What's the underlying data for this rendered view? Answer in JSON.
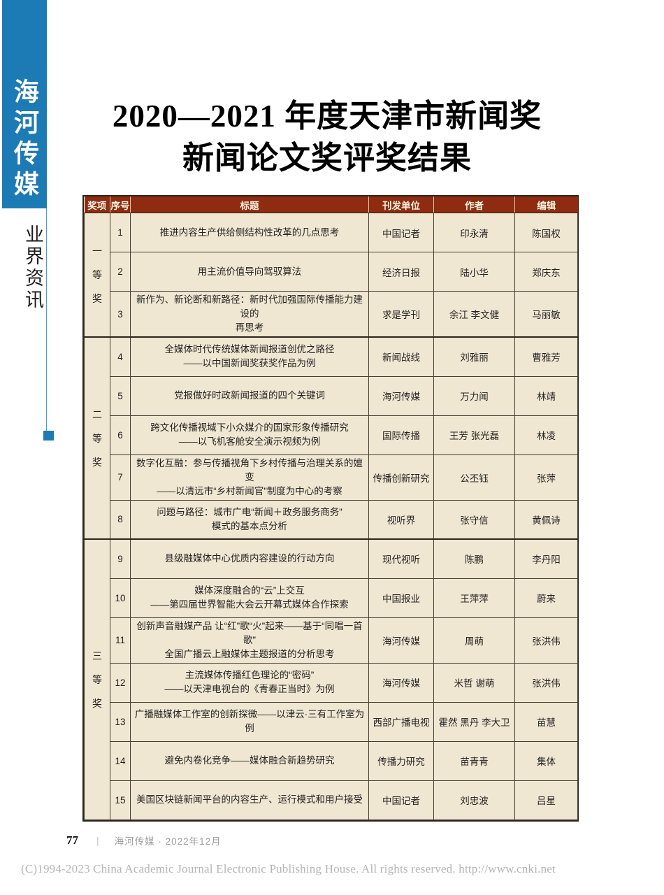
{
  "sidebar": {
    "brand": "海河传媒",
    "section": "业界资讯"
  },
  "title": {
    "line1": "2020—2021 年度天津市新闻奖",
    "line2": "新闻论文奖评奖结果"
  },
  "table": {
    "headers": [
      "奖项",
      "序号",
      "标题",
      "刊发单位",
      "作者",
      "编辑"
    ],
    "groups": [
      {
        "award": "一等奖",
        "rows": [
          {
            "no": "1",
            "title": "推进内容生产供给侧结构性改革的几点思考",
            "publisher": "中国记者",
            "author": "印永清",
            "editor": "陈国权"
          },
          {
            "no": "2",
            "title": "用主流价值导向驾驭算法",
            "publisher": "经济日报",
            "author": "陆小华",
            "editor": "郑庆东"
          },
          {
            "no": "3",
            "title": "新作为、新论断和新路径：新时代加强国际传播能力建设的\n再思考",
            "publisher": "求是学刊",
            "author": "余江 李文健",
            "editor": "马丽敏"
          }
        ]
      },
      {
        "award": "二等奖",
        "rows": [
          {
            "no": "4",
            "title": "全媒体时代传统媒体新闻报道创优之路径\n——以中国新闻奖获奖作品为例",
            "publisher": "新闻战线",
            "author": "刘雅丽",
            "editor": "曹雅芳"
          },
          {
            "no": "5",
            "title": "党报做好时政新闻报道的四个关键词",
            "publisher": "海河传媒",
            "author": "万力闻",
            "editor": "林靖"
          },
          {
            "no": "6",
            "title": "跨文化传播视域下小众媒介的国家形象传播研究\n——以飞机客舱安全演示视频为例",
            "publisher": "国际传播",
            "author": "王芳 张光磊",
            "editor": "林凌"
          },
          {
            "no": "7",
            "title": "数字化互融：参与传播视角下乡村传播与治理关系的嬗变\n——以清远市“乡村新闻官”制度为中心的考察",
            "publisher": "传播创新研究",
            "author": "公丕钰",
            "editor": "张萍"
          },
          {
            "no": "8",
            "title": "问题与路径：城市广电“新闻＋政务服务商务”\n模式的基本点分析",
            "publisher": "视听界",
            "author": "张守信",
            "editor": "黄佩诗"
          }
        ]
      },
      {
        "award": "三等奖",
        "rows": [
          {
            "no": "9",
            "title": "县级融媒体中心优质内容建设的行动方向",
            "publisher": "现代视听",
            "author": "陈鹏",
            "editor": "李丹阳"
          },
          {
            "no": "10",
            "title": "媒体深度融合的“云”上交互\n——第四届世界智能大会云开幕式媒体合作探索",
            "publisher": "中国报业",
            "author": "王萍萍",
            "editor": "蔚来"
          },
          {
            "no": "11",
            "title": "创新声音融媒产品 让“红”歌“火”起来——基于“同唱一首歌”\n全国广播云上融媒体主题报道的分析思考",
            "publisher": "海河传媒",
            "author": "周萌",
            "editor": "张洪伟"
          },
          {
            "no": "12",
            "title": "主流媒体传播红色理论的“密码”\n——以天津电视台的《青春正当时》为例",
            "publisher": "海河传媒",
            "author": "米哲 谢萌",
            "editor": "张洪伟"
          },
          {
            "no": "13",
            "title": "广播融媒体工作室的创新探微——以津云·三有工作室为例",
            "publisher": "西部广播电视",
            "author": "霍然 黑丹 李大卫",
            "editor": "苗慧"
          },
          {
            "no": "14",
            "title": "避免内卷化竞争——媒体融合新趋势研究",
            "publisher": "传播力研究",
            "author": "苗青青",
            "editor": "集体"
          },
          {
            "no": "15",
            "title": "美国区块链新闻平台的内容生产、运行模式和用户接受",
            "publisher": "中国记者",
            "author": "刘忠波",
            "editor": "吕星"
          }
        ]
      }
    ]
  },
  "footer": {
    "page_number": "77",
    "separator": "|",
    "journal_line": "海河传媒 · 2022年12月"
  },
  "copyright": "(C)1994-2023 China Academic Journal Electronic Publishing House. All rights reserved.    http://www.cnki.net",
  "colors": {
    "sidebar_blue": "#1c7ab5",
    "header_red": "#8e2b10",
    "cell_cream": "#f0e7d2"
  }
}
